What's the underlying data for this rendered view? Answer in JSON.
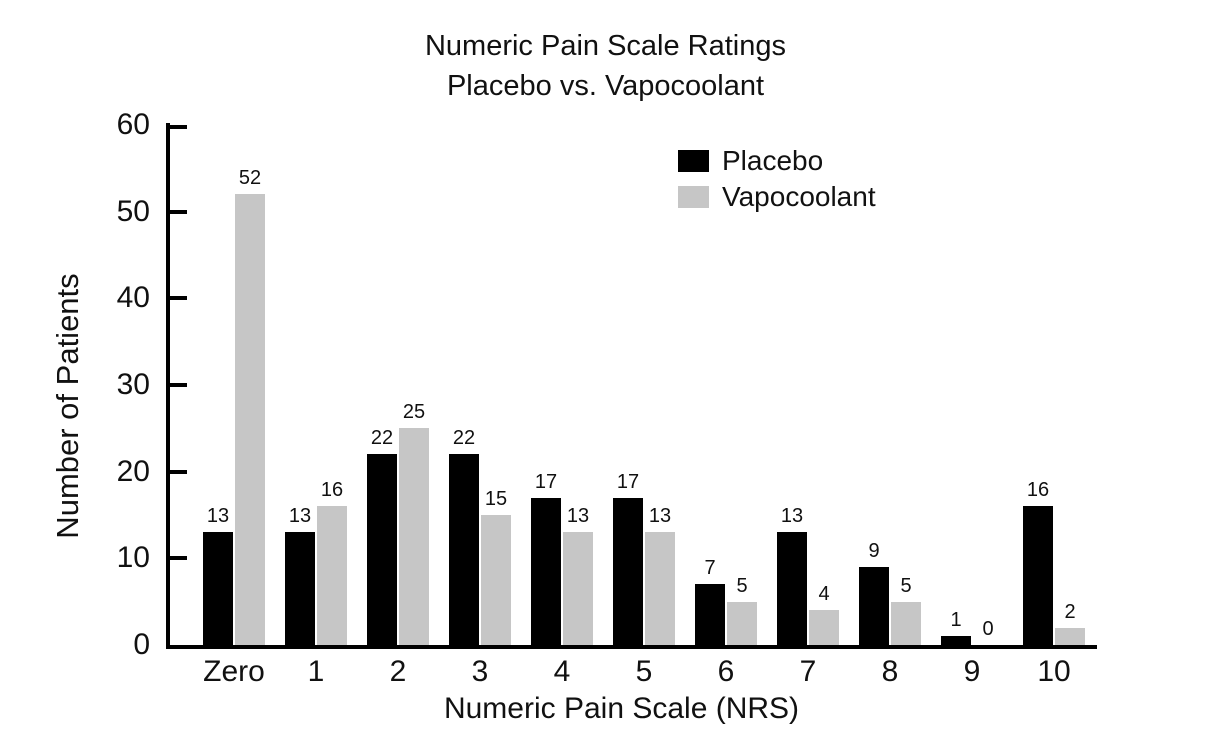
{
  "title": {
    "line1": "Numeric Pain Scale Ratings",
    "line2": "Placebo vs. Vapocoolant"
  },
  "chart_data": {
    "type": "bar",
    "title": "Numeric Pain Scale Ratings — Placebo vs. Vapocoolant",
    "categories": [
      "Zero",
      "1",
      "2",
      "3",
      "4",
      "5",
      "6",
      "7",
      "8",
      "9",
      "10"
    ],
    "series": [
      {
        "name": "Placebo",
        "color": "#000000",
        "values": [
          13,
          13,
          22,
          22,
          17,
          17,
          7,
          13,
          9,
          1,
          16
        ]
      },
      {
        "name": "Vapocoolant",
        "color": "#c6c6c6",
        "values": [
          52,
          16,
          25,
          15,
          13,
          13,
          5,
          4,
          5,
          0,
          2
        ]
      }
    ],
    "xlabel": "Numeric Pain Scale (NRS)",
    "ylabel": "Number of Patients",
    "ylim": [
      0,
      60
    ],
    "yticks": [
      0,
      10,
      20,
      30,
      40,
      50,
      60
    ],
    "bar_value_labels": true,
    "grid": false,
    "legend_position": "top-right"
  }
}
